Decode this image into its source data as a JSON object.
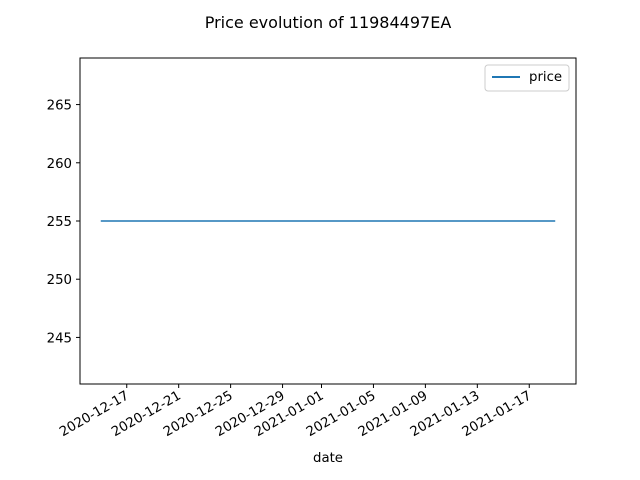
{
  "chart_data": {
    "type": "line",
    "title": "Price evolution of 11984497EA",
    "xlabel": "date",
    "ylabel": "",
    "x_type": "date",
    "x": [
      "2020-12-15",
      "2021-01-19"
    ],
    "series": [
      {
        "name": "price",
        "color": "#1f77b4",
        "values": [
          255,
          255
        ]
      }
    ],
    "xlim": [
      "2020-12-13.4",
      "2021-01-20.6"
    ],
    "ylim": [
      241,
      269
    ],
    "x_ticks": [
      "2020-12-17",
      "2020-12-21",
      "2020-12-25",
      "2020-12-29",
      "2021-01-01",
      "2021-01-05",
      "2021-01-09",
      "2021-01-13",
      "2021-01-17"
    ],
    "y_ticks": [
      245,
      250,
      255,
      260,
      265
    ],
    "grid": false,
    "legend": "top-right"
  }
}
